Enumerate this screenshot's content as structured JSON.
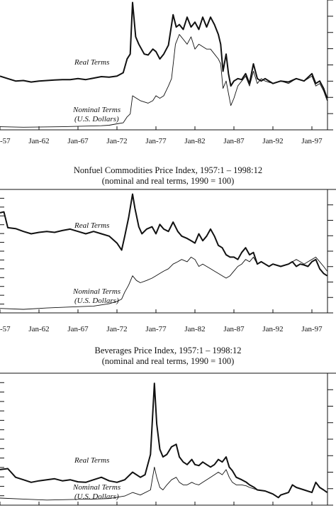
{
  "chart_data": [
    {
      "type": "line",
      "title": "",
      "subtitle": "",
      "xlabel": "",
      "ylabel": "",
      "x_tick_labels": [
        "-57",
        "Jan-62",
        "Jan-67",
        "Jan-72",
        "Jan-77",
        "Jan-82",
        "Jan-87",
        "Jan-92",
        "Jan-97"
      ],
      "x_range": [
        1957.0,
        1999.0
      ],
      "ylim": [
        0,
        260
      ],
      "grid": false,
      "series": [
        {
          "name": "Real Terms",
          "label_lines": [
            "Real Terms"
          ],
          "x": [
            1957,
            1958,
            1959,
            1960,
            1961,
            1962,
            1963,
            1964,
            1965,
            1966,
            1967,
            1968,
            1969,
            1970,
            1971,
            1972,
            1972.8,
            1973.3,
            1973.7,
            1974.0,
            1974.4,
            1974.8,
            1975.5,
            1976.0,
            1976.6,
            1977.0,
            1977.5,
            1978.0,
            1978.6,
            1979.2,
            1979.6,
            1980.0,
            1980.5,
            1981.0,
            1981.5,
            1982.0,
            1982.5,
            1983.0,
            1983.5,
            1984.0,
            1984.5,
            1985.0,
            1985.3,
            1985.6,
            1986.0,
            1986.3,
            1986.6,
            1987.0,
            1987.5,
            1988.0,
            1988.5,
            1989.0,
            1989.5,
            1990.0,
            1990.5,
            1991.0,
            1992.0,
            1993.0,
            1994.0,
            1995.0,
            1996.0,
            1997.0,
            1997.5,
            1998.0,
            1998.5,
            1998.95
          ],
          "y": [
            105,
            100,
            95,
            96,
            93,
            95,
            96,
            97,
            98,
            98,
            100,
            98,
            101,
            104,
            103,
            105,
            112,
            140,
            150,
            255,
            185,
            170,
            150,
            148,
            160,
            155,
            140,
            150,
            168,
            230,
            205,
            210,
            200,
            225,
            205,
            215,
            200,
            225,
            205,
            225,
            210,
            190,
            170,
            115,
            150,
            110,
            85,
            95,
            100,
            98,
            110,
            90,
            130,
            100,
            95,
            100,
            90,
            95,
            93,
            100,
            95,
            110,
            90,
            95,
            80,
            60
          ]
        },
        {
          "name": "Nominal Terms (U.S. Dollars)",
          "label_lines": [
            "Nominal Terms",
            "(U.S. Dollars)"
          ],
          "x": [
            1957,
            1960,
            1965,
            1970,
            1971,
            1972,
            1972.8,
            1973.3,
            1973.7,
            1974.0,
            1974.5,
            1975,
            1976,
            1976.6,
            1977.0,
            1977.5,
            1978.0,
            1978.6,
            1979.0,
            1979.5,
            1980.0,
            1980.5,
            1981.0,
            1981.5,
            1982.0,
            1982.5,
            1983.0,
            1983.5,
            1984.0,
            1984.5,
            1985.0,
            1985.3,
            1985.6,
            1986.0,
            1986.3,
            1986.6,
            1987.0,
            1987.5,
            1988.0,
            1988.5,
            1989.0,
            1989.5,
            1990.0,
            1990.5,
            1991.0,
            1992.0,
            1993.0,
            1994.0,
            1995.0,
            1996.0,
            1997.0,
            1997.5,
            1998.0,
            1998.5,
            1998.95
          ],
          "y": [
            2,
            1,
            2,
            4,
            5,
            8,
            10,
            22,
            28,
            65,
            60,
            55,
            50,
            55,
            65,
            60,
            65,
            85,
            100,
            170,
            190,
            180,
            170,
            185,
            160,
            170,
            165,
            160,
            160,
            150,
            140,
            130,
            80,
            95,
            70,
            45,
            60,
            85,
            95,
            105,
            85,
            115,
            90,
            100,
            95,
            90,
            95,
            90,
            100,
            95,
            105,
            85,
            90,
            75,
            55
          ]
        }
      ]
    },
    {
      "type": "line",
      "title": "Nonfuel Commodities Price Index, 1957:1 – 1998:12",
      "subtitle": "(nominal and real terms, 1990 = 100)",
      "xlabel": "",
      "ylabel": "",
      "x_tick_labels": [
        "-57",
        "Jan-62",
        "Jan-67",
        "Jan-72",
        "Jan-77",
        "Jan-82",
        "Jan-87",
        "Jan-92",
        "Jan-97"
      ],
      "x_range": [
        1957.0,
        1999.0
      ],
      "ylim": [
        0,
        260
      ],
      "grid": false,
      "series": [
        {
          "name": "Real Terms",
          "label_lines": [
            "Real Terms"
          ],
          "x": [
            1957,
            1957.5,
            1958,
            1959,
            1960,
            1961,
            1962,
            1963,
            1964,
            1965,
            1966,
            1967,
            1968,
            1969,
            1970,
            1971,
            1972,
            1972.6,
            1973.0,
            1973.5,
            1974.0,
            1974.3,
            1974.8,
            1975.2,
            1975.8,
            1976.5,
            1977.0,
            1977.5,
            1978.0,
            1978.6,
            1979.2,
            1979.8,
            1980.3,
            1981.0,
            1981.5,
            1982.0,
            1982.5,
            1983.0,
            1983.5,
            1984.0,
            1984.5,
            1985.0,
            1985.5,
            1986.0,
            1986.5,
            1987.0,
            1987.5,
            1988.0,
            1988.5,
            1989.0,
            1989.5,
            1990.0,
            1990.5,
            1991.0,
            1991.5,
            1992.0,
            1993.0,
            1994.0,
            1994.5,
            1995.0,
            1995.5,
            1996.0,
            1996.5,
            1997.0,
            1997.5,
            1998.0,
            1998.5,
            1998.95
          ],
          "y": [
            210,
            212,
            178,
            176,
            170,
            165,
            168,
            170,
            168,
            172,
            175,
            170,
            165,
            170,
            165,
            160,
            145,
            130,
            160,
            200,
            250,
            220,
            180,
            165,
            175,
            180,
            165,
            185,
            175,
            170,
            190,
            170,
            160,
            155,
            150,
            145,
            165,
            150,
            160,
            175,
            160,
            140,
            135,
            120,
            115,
            115,
            110,
            125,
            135,
            120,
            125,
            100,
            105,
            100,
            95,
            100,
            95,
            100,
            105,
            95,
            100,
            98,
            95,
            105,
            110,
            90,
            80,
            75
          ]
        },
        {
          "name": "Nominal Terms (U.S. Dollars)",
          "label_lines": [
            "Nominal Terms",
            "(U.S. Dollars)"
          ],
          "x": [
            1957,
            1960,
            1963,
            1966,
            1969,
            1971,
            1972.0,
            1972.6,
            1973.0,
            1973.5,
            1974.0,
            1974.5,
            1975.0,
            1975.8,
            1976.5,
            1977.0,
            1977.5,
            1978.0,
            1978.6,
            1979.2,
            1979.8,
            1980.3,
            1981.0,
            1981.5,
            1982.0,
            1982.5,
            1983.0,
            1983.5,
            1984.0,
            1984.5,
            1985.0,
            1985.5,
            1986.0,
            1986.5,
            1987.0,
            1987.5,
            1988.0,
            1988.5,
            1989.0,
            1989.5,
            1990.0,
            1990.5,
            1991.0,
            1991.5,
            1992.0,
            1993.0,
            1994.0,
            1994.5,
            1995.0,
            1995.5,
            1996.0,
            1996.5,
            1997.0,
            1997.5,
            1998.0,
            1998.5,
            1998.95
          ],
          "y": [
            5,
            3,
            6,
            8,
            10,
            15,
            20,
            25,
            40,
            55,
            75,
            65,
            60,
            65,
            70,
            75,
            80,
            85,
            90,
            100,
            105,
            110,
            105,
            115,
            110,
            95,
            100,
            95,
            90,
            85,
            80,
            75,
            70,
            75,
            85,
            95,
            100,
            110,
            105,
            115,
            100,
            105,
            100,
            95,
            100,
            95,
            100,
            105,
            110,
            105,
            100,
            105,
            110,
            115,
            105,
            95,
            85
          ]
        }
      ]
    },
    {
      "type": "line",
      "title": "Beverages Price Index, 1957:1 – 1998:12",
      "subtitle": "(nominal and real terms, 1990 = 100)",
      "xlabel": "",
      "ylabel": "",
      "x_tick_labels": [],
      "x_range": [
        1957.0,
        1999.0
      ],
      "ylim": [
        0,
        260
      ],
      "grid": false,
      "series": [
        {
          "name": "Real Terms",
          "label_lines": [
            "Real Terms"
          ],
          "x": [
            1957,
            1958,
            1959,
            1960,
            1961,
            1962,
            1963,
            1964,
            1965,
            1966,
            1967,
            1968,
            1969,
            1970,
            1971,
            1972,
            1973,
            1974,
            1975.0,
            1975.6,
            1976.3,
            1976.8,
            1977.1,
            1977.5,
            1977.9,
            1978.4,
            1979.0,
            1979.6,
            1980.0,
            1980.5,
            1981.0,
            1981.6,
            1982.0,
            1982.5,
            1983.0,
            1983.5,
            1984.0,
            1984.5,
            1985.0,
            1985.5,
            1986.0,
            1986.4,
            1986.8,
            1987.3,
            1988.0,
            1988.6,
            1989.0,
            1989.6,
            1990.0,
            1991.0,
            1992.0,
            1992.7,
            1993.0,
            1994.0,
            1994.5,
            1995.0,
            1996.0,
            1997.0,
            1997.5,
            1998.0,
            1998.5,
            1998.95
          ],
          "y": [
            70,
            72,
            55,
            50,
            45,
            48,
            50,
            52,
            48,
            50,
            46,
            45,
            50,
            55,
            48,
            45,
            50,
            65,
            55,
            60,
            100,
            240,
            160,
            110,
            95,
            100,
            115,
            120,
            95,
            85,
            80,
            90,
            80,
            78,
            85,
            80,
            75,
            80,
            90,
            85,
            95,
            75,
            68,
            55,
            50,
            45,
            40,
            35,
            30,
            28,
            22,
            15,
            20,
            25,
            40,
            35,
            30,
            25,
            45,
            35,
            30,
            25
          ]
        },
        {
          "name": "Nominal Terms (U.S. Dollars)",
          "label_lines": [
            "Nominal Terms",
            "(U.S. Dollars)"
          ],
          "x": [
            1957,
            1960,
            1963,
            1966,
            1969,
            1971,
            1973,
            1974,
            1975,
            1976.3,
            1976.8,
            1977.1,
            1977.5,
            1977.9,
            1978.4,
            1979.0,
            1979.6,
            1980.0,
            1980.5,
            1981.0,
            1981.6,
            1982.0,
            1982.5,
            1983.0,
            1983.5,
            1984.0,
            1984.5,
            1985.0,
            1985.5,
            1986.0,
            1986.4,
            1986.8,
            1987.3,
            1988.0,
            1988.6,
            1989.0,
            1989.6,
            1990.0,
            1991.0,
            1992.0,
            1992.7,
            1993.0,
            1994.0,
            1994.5,
            1995.0,
            1996.0,
            1997.0,
            1997.5,
            1998.0,
            1998.5,
            1998.95
          ],
          "y": [
            14,
            12,
            10,
            11,
            12,
            13,
            18,
            25,
            20,
            30,
            75,
            55,
            35,
            30,
            40,
            50,
            55,
            45,
            40,
            40,
            45,
            42,
            40,
            45,
            50,
            55,
            60,
            65,
            60,
            70,
            55,
            45,
            40,
            40,
            38,
            35,
            32,
            30,
            28,
            22,
            15,
            20,
            25,
            40,
            35,
            30,
            25,
            45,
            35,
            30,
            25
          ]
        }
      ]
    }
  ]
}
